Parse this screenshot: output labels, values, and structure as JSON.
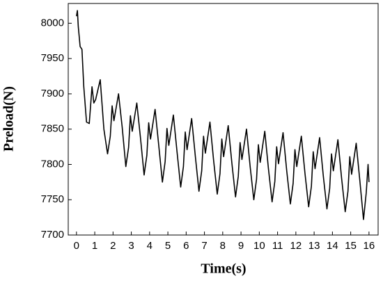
{
  "chart_data": {
    "type": "line",
    "xlabel": "Time(s)",
    "ylabel": "Preload(N)",
    "color": "#000000",
    "x": [
      0,
      0.05,
      0.1,
      0.2,
      0.3,
      0.4,
      0.55,
      0.7,
      0.85,
      0.95,
      1.05,
      1.3,
      1.5,
      1.7,
      1.85,
      1.95,
      2.05,
      2.3,
      2.5,
      2.7,
      2.85,
      2.95,
      3.05,
      3.3,
      3.5,
      3.7,
      3.85,
      3.95,
      4.05,
      4.3,
      4.5,
      4.7,
      4.85,
      4.95,
      5.05,
      5.3,
      5.5,
      5.7,
      5.85,
      5.95,
      6.05,
      6.3,
      6.5,
      6.7,
      6.85,
      6.95,
      7.05,
      7.3,
      7.5,
      7.7,
      7.85,
      7.95,
      8.05,
      8.3,
      8.5,
      8.7,
      8.85,
      8.95,
      9.05,
      9.3,
      9.5,
      9.7,
      9.85,
      9.95,
      10.05,
      10.3,
      10.5,
      10.7,
      10.85,
      10.95,
      11.05,
      11.3,
      11.5,
      11.7,
      11.85,
      11.95,
      12.05,
      12.3,
      12.5,
      12.7,
      12.85,
      12.95,
      13.05,
      13.3,
      13.5,
      13.7,
      13.85,
      13.95,
      14.05,
      14.3,
      14.5,
      14.7,
      14.85,
      14.95,
      15.05,
      15.3,
      15.5,
      15.7,
      15.85,
      15.95,
      16
    ],
    "values": [
      8010,
      8018,
      7995,
      7967,
      7963,
      7910,
      7860,
      7858,
      7910,
      7887,
      7892,
      7920,
      7850,
      7815,
      7840,
      7883,
      7862,
      7900,
      7853,
      7797,
      7824,
      7869,
      7847,
      7887,
      7838,
      7785,
      7813,
      7859,
      7836,
      7878,
      7827,
      7775,
      7804,
      7851,
      7827,
      7870,
      7818,
      7768,
      7797,
      7846,
      7821,
      7865,
      7812,
      7762,
      7791,
      7840,
      7816,
      7860,
      7806,
      7758,
      7787,
      7836,
      7811,
      7855,
      7802,
      7754,
      7783,
      7831,
      7807,
      7850,
      7797,
      7750,
      7779,
      7828,
      7803,
      7847,
      7794,
      7747,
      7776,
      7825,
      7801,
      7845,
      7791,
      7744,
      7773,
      7821,
      7797,
      7840,
      7787,
      7740,
      7769,
      7818,
      7794,
      7838,
      7784,
      7737,
      7766,
      7815,
      7791,
      7835,
      7781,
      7733,
      7762,
      7811,
      7786,
      7830,
      7777,
      7722,
      7760,
      7800,
      7775
    ],
    "xlim": [
      -0.45,
      16.5
    ],
    "xticks": [
      0,
      1,
      2,
      3,
      4,
      5,
      6,
      7,
      8,
      9,
      10,
      11,
      12,
      13,
      14,
      15,
      16
    ],
    "ylim": [
      7700,
      8028
    ],
    "yticks": [
      7700,
      7750,
      7800,
      7850,
      7900,
      7950,
      8000
    ]
  }
}
